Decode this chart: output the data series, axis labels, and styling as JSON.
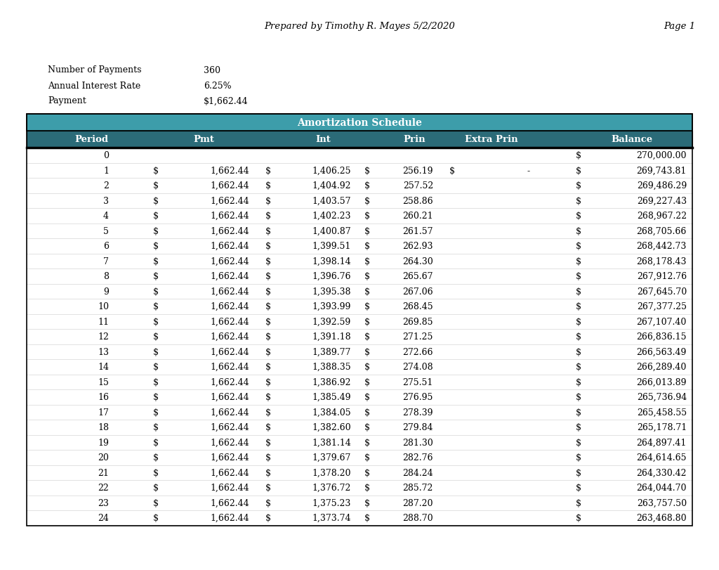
{
  "title": "Prepared by Timothy R. Mayes 5/2/2020",
  "page": "Page 1",
  "num_payments": "360",
  "annual_rate": "6.25%",
  "payment": "$1,662.44",
  "header_text": "Amortization Schedule",
  "teal_dark": "#2b6b78",
  "teal_light": "#3d9daa",
  "page_bg": "#ffffff",
  "row_data": [
    {
      "period": "0",
      "pmt": "",
      "int": "",
      "prin": "",
      "extra": "",
      "bal": "270,000.00"
    },
    {
      "period": "1",
      "pmt": "1,662.44",
      "int": "1,406.25",
      "prin": "256.19",
      "extra": "-",
      "bal": "269,743.81"
    },
    {
      "period": "2",
      "pmt": "1,662.44",
      "int": "1,404.92",
      "prin": "257.52",
      "extra": "",
      "bal": "269,486.29"
    },
    {
      "period": "3",
      "pmt": "1,662.44",
      "int": "1,403.57",
      "prin": "258.86",
      "extra": "",
      "bal": "269,227.43"
    },
    {
      "period": "4",
      "pmt": "1,662.44",
      "int": "1,402.23",
      "prin": "260.21",
      "extra": "",
      "bal": "268,967.22"
    },
    {
      "period": "5",
      "pmt": "1,662.44",
      "int": "1,400.87",
      "prin": "261.57",
      "extra": "",
      "bal": "268,705.66"
    },
    {
      "period": "6",
      "pmt": "1,662.44",
      "int": "1,399.51",
      "prin": "262.93",
      "extra": "",
      "bal": "268,442.73"
    },
    {
      "period": "7",
      "pmt": "1,662.44",
      "int": "1,398.14",
      "prin": "264.30",
      "extra": "",
      "bal": "268,178.43"
    },
    {
      "period": "8",
      "pmt": "1,662.44",
      "int": "1,396.76",
      "prin": "265.67",
      "extra": "",
      "bal": "267,912.76"
    },
    {
      "period": "9",
      "pmt": "1,662.44",
      "int": "1,395.38",
      "prin": "267.06",
      "extra": "",
      "bal": "267,645.70"
    },
    {
      "period": "10",
      "pmt": "1,662.44",
      "int": "1,393.99",
      "prin": "268.45",
      "extra": "",
      "bal": "267,377.25"
    },
    {
      "period": "11",
      "pmt": "1,662.44",
      "int": "1,392.59",
      "prin": "269.85",
      "extra": "",
      "bal": "267,107.40"
    },
    {
      "period": "12",
      "pmt": "1,662.44",
      "int": "1,391.18",
      "prin": "271.25",
      "extra": "",
      "bal": "266,836.15"
    },
    {
      "period": "13",
      "pmt": "1,662.44",
      "int": "1,389.77",
      "prin": "272.66",
      "extra": "",
      "bal": "266,563.49"
    },
    {
      "period": "14",
      "pmt": "1,662.44",
      "int": "1,388.35",
      "prin": "274.08",
      "extra": "",
      "bal": "266,289.40"
    },
    {
      "period": "15",
      "pmt": "1,662.44",
      "int": "1,386.92",
      "prin": "275.51",
      "extra": "",
      "bal": "266,013.89"
    },
    {
      "period": "16",
      "pmt": "1,662.44",
      "int": "1,385.49",
      "prin": "276.95",
      "extra": "",
      "bal": "265,736.94"
    },
    {
      "period": "17",
      "pmt": "1,662.44",
      "int": "1,384.05",
      "prin": "278.39",
      "extra": "",
      "bal": "265,458.55"
    },
    {
      "period": "18",
      "pmt": "1,662.44",
      "int": "1,382.60",
      "prin": "279.84",
      "extra": "",
      "bal": "265,178.71"
    },
    {
      "period": "19",
      "pmt": "1,662.44",
      "int": "1,381.14",
      "prin": "281.30",
      "extra": "",
      "bal": "264,897.41"
    },
    {
      "period": "20",
      "pmt": "1,662.44",
      "int": "1,379.67",
      "prin": "282.76",
      "extra": "",
      "bal": "264,614.65"
    },
    {
      "period": "21",
      "pmt": "1,662.44",
      "int": "1,378.20",
      "prin": "284.24",
      "extra": "",
      "bal": "264,330.42"
    },
    {
      "period": "22",
      "pmt": "1,662.44",
      "int": "1,376.72",
      "prin": "285.72",
      "extra": "",
      "bal": "264,044.70"
    },
    {
      "period": "23",
      "pmt": "1,662.44",
      "int": "1,375.23",
      "prin": "287.20",
      "extra": "",
      "bal": "263,757.50"
    },
    {
      "period": "24",
      "pmt": "1,662.44",
      "int": "1,373.74",
      "prin": "288.70",
      "extra": "",
      "bal": "263,468.80"
    }
  ]
}
